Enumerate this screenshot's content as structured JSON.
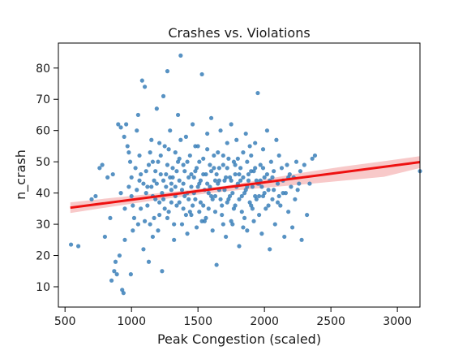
{
  "chart_data": {
    "type": "scatter",
    "title": "Crashes vs. Violations",
    "xlabel": "Peak Congestion (scaled)",
    "ylabel": "n_crash",
    "xlim": [
      450,
      3170
    ],
    "ylim": [
      3.5,
      88
    ],
    "x_ticks": [
      500,
      1000,
      1500,
      2000,
      2500,
      3000
    ],
    "y_ticks": [
      10,
      20,
      30,
      40,
      50,
      60,
      70,
      80
    ],
    "grid": false,
    "legend": "none",
    "colors": {
      "points": "#3a7fb8",
      "regression_line": "#ee1111",
      "confidence_band": "#f6b7b7"
    },
    "regression": {
      "x": [
        540,
        3170
      ],
      "y": [
        35.3,
        49.9
      ]
    },
    "confidence_band": {
      "x": [
        540,
        800,
        1100,
        1400,
        1700,
        2000,
        2300,
        2600,
        2900,
        3170
      ],
      "upper": [
        37.0,
        38.2,
        39.5,
        40.8,
        42.3,
        44.4,
        46.6,
        48.5,
        50.2,
        51.8
      ],
      "lower": [
        33.6,
        35.3,
        37.2,
        39.0,
        40.5,
        41.7,
        42.8,
        44.0,
        45.2,
        48.0
      ]
    },
    "points": [
      [
        545,
        23.5
      ],
      [
        600,
        23
      ],
      [
        700,
        38
      ],
      [
        730,
        39
      ],
      [
        760,
        48
      ],
      [
        780,
        49
      ],
      [
        800,
        26
      ],
      [
        820,
        45
      ],
      [
        840,
        32
      ],
      [
        850,
        12
      ],
      [
        860,
        46
      ],
      [
        870,
        15
      ],
      [
        880,
        18
      ],
      [
        890,
        14
      ],
      [
        900,
        62
      ],
      [
        910,
        20
      ],
      [
        920,
        61
      ],
      [
        930,
        9
      ],
      [
        940,
        8
      ],
      [
        945,
        58
      ],
      [
        950,
        25
      ],
      [
        960,
        62
      ],
      [
        970,
        55
      ],
      [
        980,
        53
      ],
      [
        990,
        50
      ],
      [
        995,
        14
      ],
      [
        1000,
        45
      ],
      [
        1010,
        28
      ],
      [
        1020,
        32
      ],
      [
        1030,
        48
      ],
      [
        1040,
        60
      ],
      [
        1050,
        65
      ],
      [
        1060,
        52
      ],
      [
        1070,
        35
      ],
      [
        1080,
        76
      ],
      [
        1090,
        22
      ],
      [
        1100,
        74
      ],
      [
        1110,
        40
      ],
      [
        1120,
        42
      ],
      [
        1130,
        18
      ],
      [
        1140,
        30
      ],
      [
        1150,
        57
      ],
      [
        1160,
        26
      ],
      [
        1170,
        44
      ],
      [
        1180,
        38
      ],
      [
        1190,
        67
      ],
      [
        1200,
        50
      ],
      [
        1210,
        37
      ],
      [
        1220,
        46
      ],
      [
        1230,
        15
      ],
      [
        1240,
        71
      ],
      [
        1250,
        55
      ],
      [
        1260,
        42
      ],
      [
        1270,
        79
      ],
      [
        1280,
        34
      ],
      [
        1290,
        60
      ],
      [
        1300,
        41
      ],
      [
        1310,
        48
      ],
      [
        1320,
        25
      ],
      [
        1330,
        53
      ],
      [
        1340,
        36
      ],
      [
        1350,
        65
      ],
      [
        1360,
        44
      ],
      [
        1370,
        84
      ],
      [
        1380,
        30
      ],
      [
        1390,
        49
      ],
      [
        1400,
        39
      ],
      [
        1410,
        58
      ],
      [
        1420,
        27
      ],
      [
        1430,
        45
      ],
      [
        1440,
        52
      ],
      [
        1450,
        33
      ],
      [
        1460,
        62
      ],
      [
        1470,
        40
      ],
      [
        1480,
        47
      ],
      [
        1490,
        29
      ],
      [
        1500,
        55
      ],
      [
        1510,
        43
      ],
      [
        1520,
        37
      ],
      [
        1530,
        78
      ],
      [
        1540,
        51
      ],
      [
        1550,
        31
      ],
      [
        1560,
        46
      ],
      [
        1570,
        59
      ],
      [
        1580,
        35
      ],
      [
        1590,
        42
      ],
      [
        1600,
        64
      ],
      [
        1610,
        28
      ],
      [
        1620,
        48
      ],
      [
        1630,
        39
      ],
      [
        1640,
        17
      ],
      [
        1650,
        53
      ],
      [
        1660,
        44
      ],
      [
        1670,
        60
      ],
      [
        1680,
        33
      ],
      [
        1690,
        49
      ],
      [
        1700,
        41
      ],
      [
        1710,
        26
      ],
      [
        1720,
        56
      ],
      [
        1730,
        38
      ],
      [
        1740,
        45
      ],
      [
        1750,
        62
      ],
      [
        1760,
        30
      ],
      [
        1770,
        50
      ],
      [
        1780,
        36
      ],
      [
        1790,
        57
      ],
      [
        1800,
        43
      ],
      [
        1810,
        23
      ],
      [
        1820,
        48
      ],
      [
        1830,
        34
      ],
      [
        1840,
        53
      ],
      [
        1850,
        40
      ],
      [
        1860,
        59
      ],
      [
        1870,
        28
      ],
      [
        1880,
        46
      ],
      [
        1890,
        37
      ],
      [
        1900,
        52
      ],
      [
        1910,
        42
      ],
      [
        1920,
        31
      ],
      [
        1930,
        56
      ],
      [
        1940,
        44
      ],
      [
        1950,
        72
      ],
      [
        1960,
        39
      ],
      [
        1970,
        49
      ],
      [
        1980,
        27
      ],
      [
        1990,
        54
      ],
      [
        2000,
        45
      ],
      [
        2010,
        35
      ],
      [
        2020,
        60
      ],
      [
        2030,
        41
      ],
      [
        2040,
        22
      ],
      [
        2050,
        50
      ],
      [
        2060,
        38
      ],
      [
        2070,
        47
      ],
      [
        2080,
        30
      ],
      [
        2090,
        57
      ],
      [
        2100,
        43
      ],
      [
        2110,
        52
      ],
      [
        2120,
        36
      ],
      [
        2130,
        48
      ],
      [
        2140,
        44
      ],
      [
        2150,
        26
      ],
      [
        2160,
        40
      ],
      [
        2170,
        49
      ],
      [
        2180,
        34
      ],
      [
        2190,
        46
      ],
      [
        2200,
        42
      ],
      [
        2210,
        29
      ],
      [
        2220,
        45
      ],
      [
        2230,
        38
      ],
      [
        2240,
        50
      ],
      [
        2250,
        41
      ],
      [
        2260,
        43
      ],
      [
        2270,
        47
      ],
      [
        2280,
        25
      ],
      [
        2300,
        49
      ],
      [
        2320,
        33
      ],
      [
        2340,
        43
      ],
      [
        2360,
        51
      ],
      [
        2380,
        52
      ],
      [
        3170,
        47
      ],
      [
        1150,
        42
      ],
      [
        1180,
        47
      ],
      [
        1210,
        33
      ],
      [
        1240,
        44
      ],
      [
        1270,
        49
      ],
      [
        1300,
        37
      ],
      [
        1330,
        42
      ],
      [
        1360,
        51
      ],
      [
        1390,
        35
      ],
      [
        1420,
        40
      ],
      [
        1450,
        46
      ],
      [
        1480,
        38
      ],
      [
        1510,
        50
      ],
      [
        1540,
        36
      ],
      [
        1570,
        43
      ],
      [
        1600,
        47
      ],
      [
        1630,
        34
      ],
      [
        1660,
        41
      ],
      [
        1690,
        52
      ],
      [
        1720,
        37
      ],
      [
        1750,
        44
      ],
      [
        1780,
        49
      ],
      [
        1810,
        38
      ],
      [
        1840,
        45
      ],
      [
        1870,
        42
      ],
      [
        1900,
        36
      ],
      [
        1930,
        48
      ],
      [
        1960,
        43
      ],
      [
        1990,
        39
      ],
      [
        2020,
        46
      ],
      [
        1120,
        36
      ],
      [
        1160,
        50
      ],
      [
        1200,
        28
      ],
      [
        1240,
        38
      ],
      [
        1280,
        54
      ],
      [
        1320,
        30
      ],
      [
        1360,
        37
      ],
      [
        1400,
        47
      ],
      [
        1440,
        34
      ],
      [
        1480,
        55
      ],
      [
        1520,
        44
      ],
      [
        1560,
        32
      ],
      [
        1600,
        39
      ],
      [
        1640,
        46
      ],
      [
        1680,
        36
      ],
      [
        1720,
        48
      ],
      [
        1760,
        40
      ],
      [
        1800,
        51
      ],
      [
        1840,
        29
      ],
      [
        1880,
        44
      ],
      [
        1920,
        47
      ],
      [
        1960,
        33
      ],
      [
        2000,
        40
      ],
      [
        2040,
        44
      ],
      [
        1050,
        30
      ],
      [
        1090,
        43
      ],
      [
        1130,
        49
      ],
      [
        1170,
        32
      ],
      [
        1210,
        56
      ],
      [
        1250,
        35
      ],
      [
        1290,
        45
      ],
      [
        1330,
        39
      ],
      [
        1370,
        57
      ],
      [
        1410,
        33
      ],
      [
        1450,
        42
      ],
      [
        1490,
        48
      ],
      [
        1530,
        31
      ],
      [
        1570,
        54
      ],
      [
        1610,
        38
      ],
      [
        1650,
        43
      ],
      [
        1690,
        30
      ],
      [
        1730,
        51
      ],
      [
        1770,
        35
      ],
      [
        1810,
        46
      ],
      [
        1850,
        32
      ],
      [
        1890,
        55
      ],
      [
        1930,
        39
      ],
      [
        1970,
        44
      ],
      [
        980,
        42
      ],
      [
        1010,
        36
      ],
      [
        1040,
        41
      ],
      [
        1070,
        46
      ],
      [
        1100,
        31
      ],
      [
        1140,
        53
      ],
      [
        1190,
        43
      ],
      [
        1230,
        40
      ],
      [
        1270,
        32
      ],
      [
        1310,
        45
      ],
      [
        1350,
        50
      ],
      [
        1390,
        43
      ],
      [
        1430,
        38
      ],
      [
        1470,
        45
      ],
      [
        1510,
        34
      ],
      [
        1550,
        41
      ],
      [
        1590,
        49
      ],
      [
        1630,
        44
      ],
      [
        1670,
        38
      ],
      [
        1710,
        45
      ],
      [
        1750,
        31
      ],
      [
        1790,
        42
      ],
      [
        1830,
        39
      ],
      [
        1870,
        50
      ],
      [
        1910,
        35
      ],
      [
        1950,
        43
      ],
      [
        1990,
        48
      ],
      [
        2030,
        36
      ],
      [
        2070,
        41
      ],
      [
        2110,
        39
      ],
      [
        920,
        40
      ],
      [
        950,
        35
      ],
      [
        1000,
        39
      ],
      [
        1060,
        44
      ],
      [
        1110,
        47
      ],
      [
        1160,
        39
      ],
      [
        1220,
        52
      ],
      [
        1260,
        46
      ],
      [
        1300,
        43
      ],
      [
        1340,
        47
      ],
      [
        1380,
        41
      ],
      [
        1420,
        50
      ],
      [
        1460,
        36
      ],
      [
        1500,
        42
      ],
      [
        1540,
        46
      ],
      [
        1580,
        40
      ],
      [
        1620,
        52
      ],
      [
        1660,
        48
      ],
      [
        1700,
        44
      ],
      [
        1740,
        39
      ],
      [
        1780,
        46
      ],
      [
        1820,
        44
      ],
      [
        1860,
        41
      ],
      [
        1900,
        47
      ],
      [
        1940,
        38
      ],
      [
        1980,
        42
      ],
      [
        2060,
        45
      ],
      [
        2100,
        37
      ],
      [
        2140,
        40
      ],
      [
        2180,
        45
      ]
    ]
  }
}
